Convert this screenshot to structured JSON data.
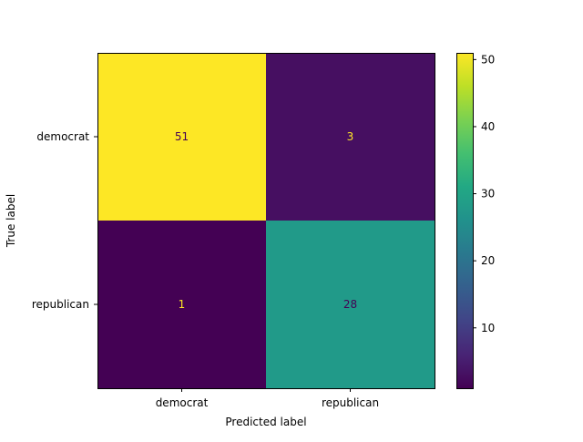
{
  "chart_data": {
    "type": "heatmap",
    "subtype": "confusion-matrix",
    "title": "",
    "xlabel": "Predicted label",
    "ylabel": "True label",
    "x_categories": [
      "democrat",
      "republican"
    ],
    "y_categories": [
      "democrat",
      "republican"
    ],
    "values": [
      [
        51,
        3
      ],
      [
        1,
        28
      ]
    ],
    "colormap": "viridis",
    "colorbar": {
      "vmin": 1,
      "vmax": 51,
      "ticks": [
        10,
        20,
        30,
        40,
        50
      ]
    },
    "grid": false
  },
  "colors": {
    "dark_text": "#440154",
    "light_text": "#fde725",
    "axis": "#000000"
  }
}
